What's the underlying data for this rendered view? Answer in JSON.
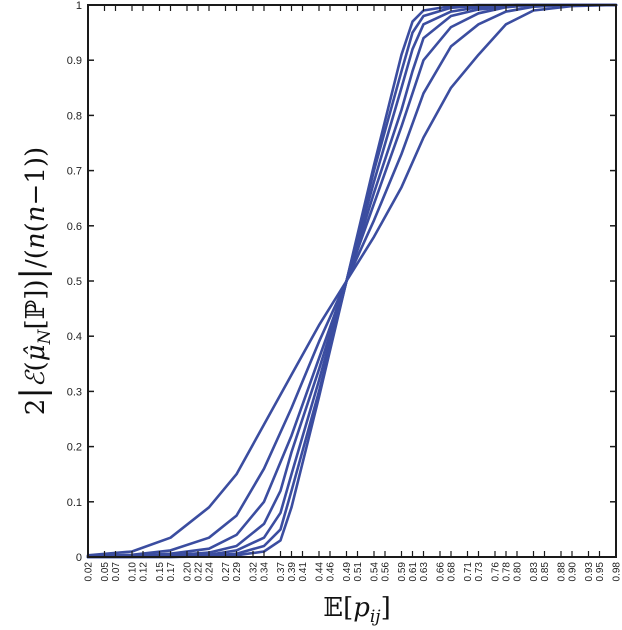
{
  "chart_data": {
    "type": "line",
    "xlabel": "𝔼[p_ij]",
    "ylabel": "2|ℰ(μ̂_N[ℙ])|/(n(n−1))",
    "xlim": [
      0.02,
      0.98
    ],
    "ylim": [
      0,
      1
    ],
    "x_tick_labels": [
      "0.02",
      "0.05",
      "0.07",
      "0.10",
      "0.12",
      "0.15",
      "0.17",
      "0.20",
      "0.22",
      "0.24",
      "0.27",
      "0.29",
      "0.32",
      "0.34",
      "0.37",
      "0.39",
      "0.41",
      "0.44",
      "0.46",
      "0.49",
      "0.51",
      "0.54",
      "0.56",
      "0.59",
      "0.61",
      "0.63",
      "0.66",
      "0.68",
      "0.71",
      "0.73",
      "0.76",
      "0.78",
      "0.80",
      "0.83",
      "0.85",
      "0.88",
      "0.90",
      "0.93",
      "0.95",
      "0.98"
    ],
    "y_tick_labels": [
      "0",
      "0.1",
      "0.2",
      "0.3",
      "0.4",
      "0.5",
      "0.6",
      "0.7",
      "0.8",
      "0.9",
      "1"
    ],
    "grid": false,
    "line_color": "#3b4da0",
    "series": [
      {
        "x": [
          0.02,
          0.1,
          0.17,
          0.24,
          0.29,
          0.34,
          0.39,
          0.44,
          0.49,
          0.54,
          0.59,
          0.63,
          0.68,
          0.73,
          0.78,
          0.83,
          0.9,
          0.98
        ],
        "values": [
          0.003,
          0.01,
          0.035,
          0.09,
          0.15,
          0.24,
          0.33,
          0.42,
          0.5,
          0.58,
          0.67,
          0.76,
          0.85,
          0.91,
          0.965,
          0.99,
          0.998,
          1.0
        ]
      },
      {
        "x": [
          0.02,
          0.1,
          0.17,
          0.24,
          0.29,
          0.34,
          0.39,
          0.44,
          0.49,
          0.54,
          0.59,
          0.63,
          0.68,
          0.73,
          0.78,
          0.83,
          0.9,
          0.98
        ],
        "values": [
          0.002,
          0.004,
          0.012,
          0.035,
          0.075,
          0.16,
          0.27,
          0.39,
          0.5,
          0.61,
          0.73,
          0.84,
          0.925,
          0.965,
          0.988,
          0.997,
          1.0,
          1.0
        ]
      },
      {
        "x": [
          0.02,
          0.1,
          0.17,
          0.24,
          0.29,
          0.34,
          0.39,
          0.44,
          0.49,
          0.54,
          0.59,
          0.63,
          0.68,
          0.73,
          0.78,
          0.83,
          0.9,
          0.98
        ],
        "values": [
          0.001,
          0.002,
          0.006,
          0.015,
          0.04,
          0.1,
          0.22,
          0.36,
          0.5,
          0.64,
          0.78,
          0.9,
          0.96,
          0.985,
          0.996,
          1.0,
          1.0,
          1.0
        ]
      },
      {
        "x": [
          0.02,
          0.1,
          0.17,
          0.24,
          0.29,
          0.34,
          0.37,
          0.39,
          0.44,
          0.49,
          0.54,
          0.59,
          0.61,
          0.63,
          0.68,
          0.73,
          0.8,
          0.9,
          0.98
        ],
        "values": [
          0.0,
          0.001,
          0.003,
          0.008,
          0.02,
          0.06,
          0.12,
          0.19,
          0.34,
          0.5,
          0.66,
          0.81,
          0.88,
          0.94,
          0.98,
          0.992,
          0.998,
          1.0,
          1.0
        ]
      },
      {
        "x": [
          0.02,
          0.1,
          0.17,
          0.24,
          0.29,
          0.34,
          0.37,
          0.39,
          0.44,
          0.49,
          0.54,
          0.59,
          0.61,
          0.63,
          0.68,
          0.73,
          0.8,
          0.9,
          0.98
        ],
        "values": [
          0.0,
          0.0,
          0.001,
          0.004,
          0.012,
          0.035,
          0.08,
          0.15,
          0.32,
          0.5,
          0.68,
          0.85,
          0.92,
          0.965,
          0.988,
          0.996,
          1.0,
          1.0,
          1.0
        ]
      },
      {
        "x": [
          0.02,
          0.1,
          0.17,
          0.24,
          0.29,
          0.34,
          0.37,
          0.39,
          0.44,
          0.49,
          0.54,
          0.59,
          0.61,
          0.63,
          0.68,
          0.73,
          0.8,
          0.9,
          0.98
        ],
        "values": [
          0.0,
          0.0,
          0.0,
          0.002,
          0.006,
          0.02,
          0.05,
          0.12,
          0.3,
          0.5,
          0.7,
          0.88,
          0.95,
          0.98,
          0.995,
          0.999,
          1.0,
          1.0,
          1.0
        ]
      },
      {
        "x": [
          0.02,
          0.1,
          0.17,
          0.24,
          0.29,
          0.34,
          0.37,
          0.39,
          0.44,
          0.49,
          0.54,
          0.59,
          0.61,
          0.63,
          0.68,
          0.73,
          0.8,
          0.9,
          0.98
        ],
        "values": [
          0.0,
          0.0,
          0.0,
          0.001,
          0.003,
          0.01,
          0.03,
          0.09,
          0.29,
          0.5,
          0.71,
          0.91,
          0.97,
          0.99,
          0.998,
          1.0,
          1.0,
          1.0,
          1.0
        ]
      }
    ]
  }
}
